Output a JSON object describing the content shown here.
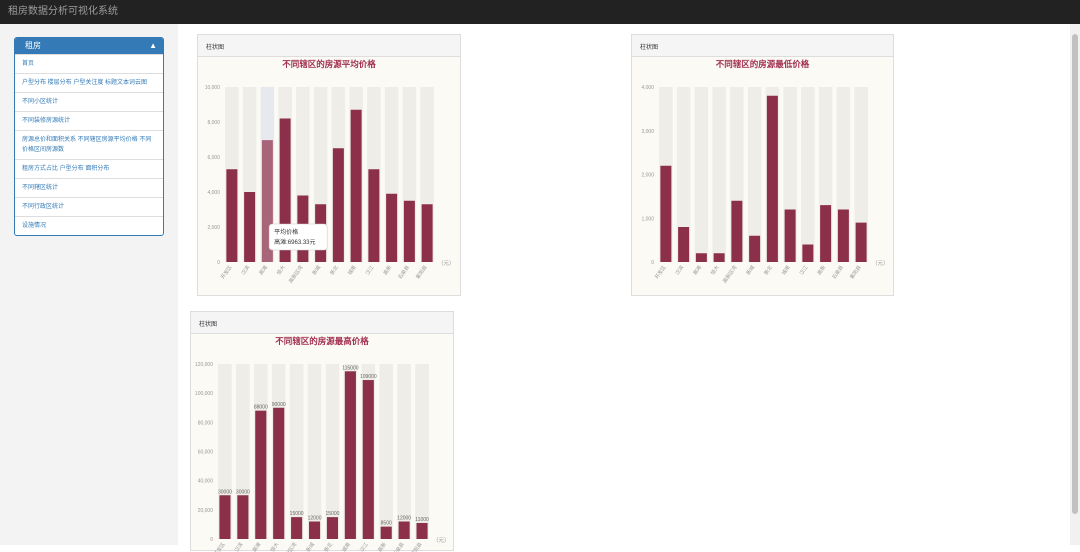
{
  "app": {
    "title": "租房数据分析可视化系统"
  },
  "sidebar": {
    "header": "租房",
    "items": [
      {
        "label": "首页"
      },
      {
        "label": "户型分布 楼层分布 户型关注度 标题文本词云图"
      },
      {
        "label": "不同小区统计"
      },
      {
        "label": "不同装修房源统计"
      },
      {
        "label": "房源总价和面积关系 不同辖区房源平均价格 不同价格区间房源数"
      },
      {
        "label": "租房方式占比 户型分布 面积分布"
      },
      {
        "label": "不同辖区统计"
      },
      {
        "label": "不同行政区统计"
      },
      {
        "label": "设施情况"
      }
    ]
  },
  "cards": [
    {
      "header": "柱状图"
    },
    {
      "header": "柱状图"
    },
    {
      "header": "柱状图"
    }
  ],
  "chart_data": [
    {
      "type": "bar",
      "title": "不同辖区的房源平均价格",
      "categories": [
        "开发区",
        "汉滨",
        "高滩",
        "恒大",
        "高新区湾",
        "新城",
        "新北",
        "城南",
        "汉江",
        "高新",
        "石泉县",
        "紫阳县"
      ],
      "values": [
        5300,
        4000,
        6963.33,
        8200,
        3800,
        3300,
        6500,
        8700,
        5300,
        3900,
        3500,
        3300
      ],
      "ylim": [
        0,
        10000
      ],
      "yticks": [
        "0",
        "2,000",
        "4,000",
        "6,000",
        "8,000",
        "10,000"
      ],
      "unit_label": "（元）",
      "bar_color": "#8b2f4b",
      "tooltip": {
        "title": "平均价格",
        "text": "高滩:6963.33元"
      }
    },
    {
      "type": "bar",
      "title": "不同辖区的房源最低价格",
      "categories": [
        "开发区",
        "汉滨",
        "高滩",
        "恒大",
        "高新区湾",
        "新城",
        "新北",
        "城南",
        "汉江",
        "高新",
        "石泉县",
        "紫阳县"
      ],
      "values": [
        2200,
        800,
        200,
        200,
        1400,
        600,
        3800,
        1200,
        400,
        1300,
        1200,
        900
      ],
      "ylim": [
        0,
        4000
      ],
      "yticks": [
        "0",
        "1,000",
        "2,000",
        "3,000",
        "4,000"
      ],
      "unit_label": "（元）",
      "bar_color": "#8b2f4b"
    },
    {
      "type": "bar",
      "title": "不同辖区的房源最高价格",
      "categories": [
        "开发区",
        "汉滨",
        "高滩",
        "恒大",
        "高新区湾",
        "新城",
        "新北",
        "城南",
        "汉江",
        "高新",
        "石泉县",
        "紫阳县"
      ],
      "values": [
        30000,
        30000,
        88000,
        90000,
        15000,
        12000,
        15000,
        115000,
        109000,
        8500,
        12000,
        11000
      ],
      "labels": [
        "30000",
        "30000",
        "88000",
        "90000",
        "15000",
        "12000",
        "15000",
        "115000",
        "109000",
        "8500",
        "12000",
        "11000"
      ],
      "ylim": [
        0,
        120000
      ],
      "yticks": [
        "0",
        "20,000",
        "40,000",
        "60,000",
        "80,000",
        "100,000",
        "120,000"
      ],
      "unit_label": "（元）",
      "bar_color": "#8b2f4b"
    }
  ]
}
